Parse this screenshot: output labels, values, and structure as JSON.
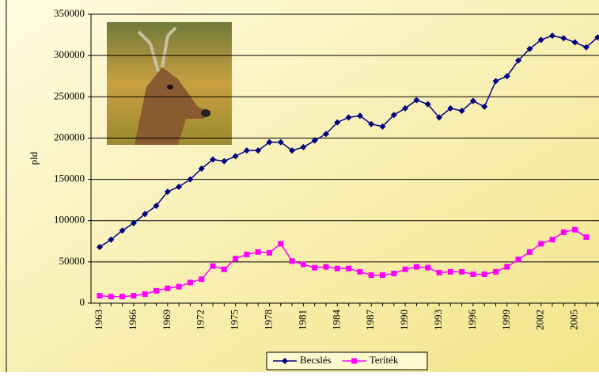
{
  "chart_data": {
    "type": "line",
    "y_label": "pld",
    "categories": [
      "1963",
      null,
      null,
      "1966",
      null,
      null,
      "1969",
      null,
      null,
      "1972",
      null,
      null,
      "1975",
      null,
      null,
      "1978",
      null,
      null,
      "1981",
      null,
      null,
      "1984",
      null,
      null,
      "1987",
      null,
      null,
      "1990",
      null,
      null,
      "1993",
      null,
      null,
      "1996",
      null,
      null,
      "1999",
      null,
      null,
      "2002",
      null,
      null,
      "2005",
      null,
      null
    ],
    "series": [
      {
        "name": "Becslés",
        "color": "#000080",
        "marker": "diamond",
        "values": [
          68000,
          77000,
          88000,
          97000,
          108000,
          118000,
          135000,
          141000,
          150000,
          163000,
          174000,
          172000,
          178000,
          185000,
          185000,
          195000,
          195000,
          185000,
          189000,
          197000,
          205000,
          219000,
          225000,
          227000,
          217000,
          214000,
          228000,
          236000,
          246000,
          241000,
          225000,
          236000,
          233000,
          245000,
          238000,
          269000,
          275000,
          294000,
          308000,
          319000,
          324000,
          321000,
          316000,
          310000,
          322000
        ]
      },
      {
        "name": "Teríték",
        "color": "#ff00ff",
        "marker": "square",
        "values": [
          9000,
          8000,
          8000,
          9000,
          11000,
          15000,
          18000,
          20000,
          25000,
          29000,
          45000,
          41000,
          54000,
          59000,
          62000,
          61000,
          72000,
          51000,
          47000,
          43000,
          44000,
          42000,
          42000,
          38000,
          34000,
          34000,
          36000,
          41000,
          44000,
          43000,
          37000,
          38000,
          38000,
          35000,
          35000,
          38000,
          44000,
          53000,
          62000,
          72000,
          77000,
          86000,
          89000,
          80000,
          null
        ]
      }
    ],
    "ylim": [
      0,
      350000
    ],
    "yticks": [
      0,
      50000,
      100000,
      150000,
      200000,
      250000,
      300000,
      350000
    ],
    "grid": true,
    "legend": "bottom"
  }
}
